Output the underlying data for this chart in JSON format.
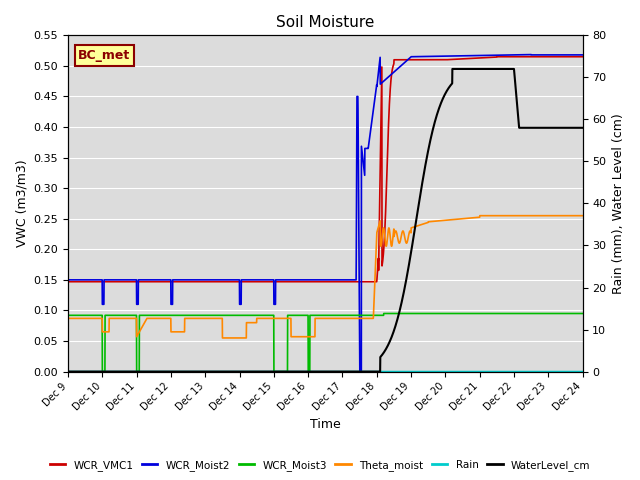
{
  "title": "Soil Moisture",
  "ylabel_left": "VWC (m3/m3)",
  "ylabel_right": "Rain (mm), Water Level (cm)",
  "xlabel": "Time",
  "ylim_left": [
    0.0,
    0.55
  ],
  "ylim_right": [
    0,
    80
  ],
  "yticks_left": [
    0.0,
    0.05,
    0.1,
    0.15,
    0.2,
    0.25,
    0.3,
    0.35,
    0.4,
    0.45,
    0.5,
    0.55
  ],
  "yticks_right": [
    0,
    10,
    20,
    30,
    40,
    50,
    60,
    70,
    80
  ],
  "bg_color": "#dcdcdc",
  "plot_bg": "#dcdcdc",
  "annotation_text": "BC_met",
  "annotation_box_color": "#ffff99",
  "annotation_box_edge": "#8b0000",
  "xtick_labels": [
    "Dec 9",
    "Dec 10",
    "Dec 11",
    "Dec 12",
    "Dec 13",
    "Dec 14",
    "Dec 15",
    "Dec 16",
    "Dec 17",
    "Dec 18",
    "Dec 19",
    "Dec 20",
    "Dec 21",
    "Dec 22",
    "Dec 23",
    "Dec 24"
  ],
  "series_colors": {
    "WCR_VMC1": "#cc0000",
    "WCR_Moist2": "#0000dd",
    "WCR_Moist3": "#00bb00",
    "Theta_moist": "#ff8800",
    "Rain": "#00cccc",
    "WaterLevel_cm": "#000000"
  }
}
